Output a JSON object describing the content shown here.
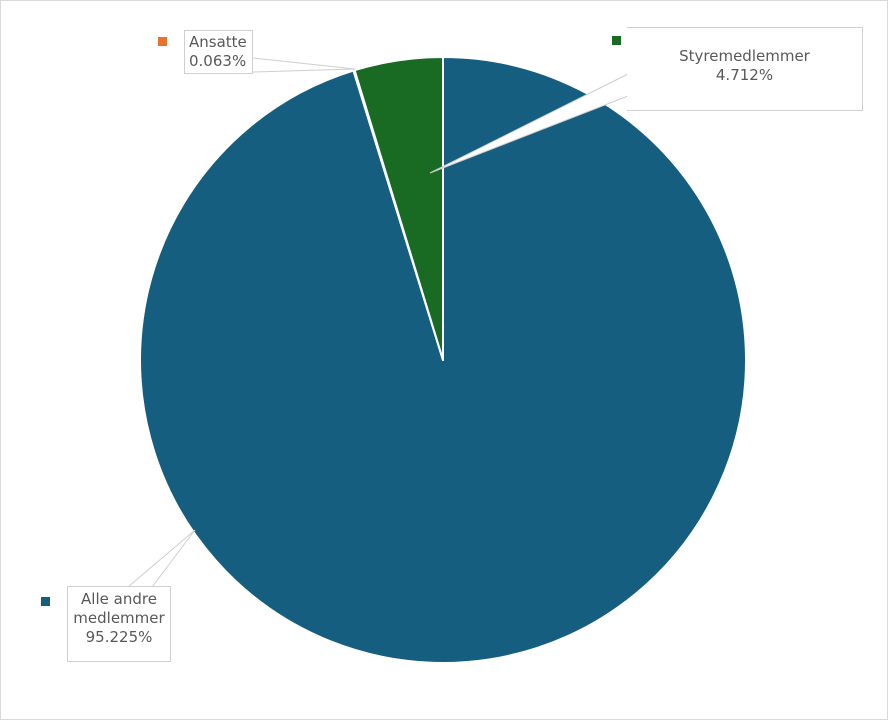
{
  "chart_data": {
    "type": "pie",
    "title": "",
    "start_angle_deg": 0,
    "direction": "clockwise",
    "categories": [
      "Alle andre medlemmer",
      "Ansatte",
      "Styremedlemmer"
    ],
    "values": [
      95.225,
      0.063,
      4.712
    ],
    "unit": "%",
    "colors": [
      "#165e80",
      "#e97132",
      "#196b24"
    ],
    "data_labels": [
      {
        "name": "Alle andre medlemmer",
        "value": "95.225%"
      },
      {
        "name": "Ansatte",
        "value": "0.063%"
      },
      {
        "name": "Styremedlemmer",
        "value": "4.712%"
      }
    ],
    "legend": "inline keys next to data labels"
  },
  "labels": {
    "ansatte": {
      "line1": "Ansatte",
      "line2": "0.063%"
    },
    "styre": {
      "line1": "Styremedlemmer",
      "line2": "4.712%"
    },
    "alle": {
      "line1": "Alle andre",
      "line2": "medlemmer",
      "line3": "95.225%"
    }
  },
  "colors": {
    "alle": "#165e80",
    "ansatte": "#e97132",
    "styre": "#196b24"
  }
}
